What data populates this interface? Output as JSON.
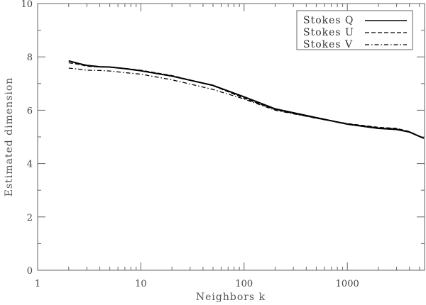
{
  "chart_data": {
    "type": "line",
    "xlabel": "Neighbors k",
    "ylabel": "Estimated dimension",
    "xscale": "log",
    "xlim": [
      1,
      5600
    ],
    "ylim": [
      0,
      10
    ],
    "x_ticks": [
      1,
      10,
      100,
      1000
    ],
    "x_tick_labels": [
      "1",
      "10",
      "100",
      "1000"
    ],
    "y_ticks": [
      0,
      2,
      4,
      6,
      8,
      10
    ],
    "y_tick_labels": [
      "0",
      "2",
      "4",
      "6",
      "8",
      "10"
    ],
    "legend_position": "top-right",
    "grid": false,
    "series": [
      {
        "name": "Stokes Q",
        "dash": "solid",
        "x": [
          2,
          2.5,
          3,
          4,
          5,
          7,
          10,
          20,
          50,
          100,
          200,
          500,
          1000,
          2000,
          3000,
          4000,
          5500
        ],
        "y": [
          7.85,
          7.75,
          7.68,
          7.63,
          7.62,
          7.56,
          7.48,
          7.28,
          6.93,
          6.5,
          6.05,
          5.72,
          5.48,
          5.32,
          5.28,
          5.18,
          4.95
        ]
      },
      {
        "name": "Stokes U",
        "dash": "dashed",
        "x": [
          2,
          2.5,
          3,
          4,
          5,
          7,
          10,
          20,
          50,
          100,
          200,
          500,
          1000,
          2000,
          3000,
          4000,
          5500
        ],
        "y": [
          7.78,
          7.72,
          7.65,
          7.62,
          7.62,
          7.57,
          7.5,
          7.3,
          6.92,
          6.45,
          6.02,
          5.7,
          5.5,
          5.36,
          5.32,
          5.2,
          4.95
        ]
      },
      {
        "name": "Stokes V",
        "dash": "dashdot",
        "x": [
          2,
          2.5,
          3,
          4,
          5,
          7,
          10,
          20,
          50,
          100,
          200,
          500,
          1000,
          2000,
          3000,
          4000,
          5500
        ],
        "y": [
          7.58,
          7.54,
          7.5,
          7.49,
          7.47,
          7.41,
          7.35,
          7.14,
          6.78,
          6.42,
          6.0,
          5.7,
          5.49,
          5.34,
          5.3,
          5.19,
          4.95
        ]
      }
    ]
  }
}
